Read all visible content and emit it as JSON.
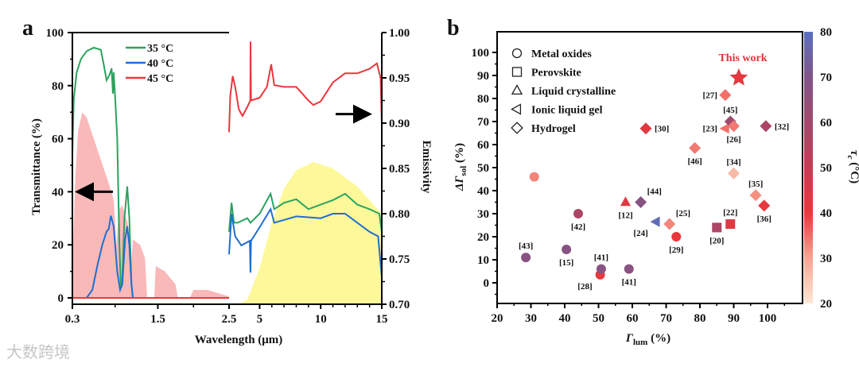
{
  "panels": {
    "a": "a",
    "b": "b"
  },
  "watermark": "大数跨境",
  "chart_data": [
    {
      "type": "line",
      "panel": "a",
      "xlabel": "Wavelength (μm)",
      "ylabel_left": "Transmittance (%)",
      "ylabel_right": "Emissivity",
      "x_ticks_left": [
        "0.3",
        "1.5",
        "2.5"
      ],
      "x_ticks_right": [
        "5",
        "10",
        "15"
      ],
      "ylim_left": [
        0,
        100
      ],
      "y_ticks_left": [
        "0",
        "20",
        "40",
        "60",
        "80",
        "100"
      ],
      "ylim_right": [
        0.7,
        1.0
      ],
      "y_ticks_right": [
        "0.70",
        "0.75",
        "0.80",
        "0.85",
        "0.90",
        "0.95",
        "1.00"
      ],
      "x_break": [
        0.3,
        2.5,
        15
      ],
      "legend": {
        "placement": "top-left",
        "entries": [
          "35 °C",
          "40 °C",
          "45 °C"
        ]
      },
      "colors": {
        "35": "#2ca25f",
        "40": "#1f6fd1",
        "45": "#e8383d",
        "solar": "#f9b9b9",
        "blackbody": "#fdf89a"
      },
      "annotations": [
        "arrow-left at 40% (transmittance axis)",
        "arrow-right at 0.91 (emissivity axis)"
      ],
      "transmittance": {
        "35": [
          [
            0.3,
            55
          ],
          [
            0.32,
            75
          ],
          [
            0.36,
            85
          ],
          [
            0.42,
            90
          ],
          [
            0.5,
            93
          ],
          [
            0.6,
            94.3
          ],
          [
            0.7,
            93.5
          ],
          [
            0.74,
            88
          ],
          [
            0.78,
            82
          ],
          [
            0.82,
            84
          ],
          [
            0.85,
            86.5
          ],
          [
            0.86,
            82
          ],
          [
            0.87,
            77
          ],
          [
            0.88,
            85
          ],
          [
            0.9,
            76
          ],
          [
            0.93,
            60
          ],
          [
            0.96,
            20
          ],
          [
            0.98,
            5
          ],
          [
            1.0,
            6
          ],
          [
            1.03,
            30
          ],
          [
            1.07,
            42
          ],
          [
            1.1,
            30
          ],
          [
            1.13,
            5
          ],
          [
            1.15,
            0
          ],
          [
            2.5,
            0
          ]
        ],
        "40": [
          [
            0.3,
            0
          ],
          [
            0.5,
            0
          ],
          [
            0.58,
            3
          ],
          [
            0.65,
            12
          ],
          [
            0.72,
            20
          ],
          [
            0.78,
            25
          ],
          [
            0.81,
            26
          ],
          [
            0.84,
            31
          ],
          [
            0.88,
            27
          ],
          [
            0.93,
            10
          ],
          [
            0.97,
            3
          ],
          [
            1.0,
            5
          ],
          [
            1.04,
            22
          ],
          [
            1.07,
            27
          ],
          [
            1.1,
            20
          ],
          [
            1.13,
            5
          ],
          [
            1.15,
            0
          ],
          [
            2.5,
            0
          ]
        ],
        "45": [
          [
            0.3,
            0
          ],
          [
            2.5,
            0
          ]
        ],
        "solar": [
          [
            0.3,
            0
          ],
          [
            0.31,
            20
          ],
          [
            0.34,
            45
          ],
          [
            0.38,
            63
          ],
          [
            0.44,
            70
          ],
          [
            0.5,
            68
          ],
          [
            0.6,
            60
          ],
          [
            0.7,
            52
          ],
          [
            0.8,
            44
          ],
          [
            0.88,
            37
          ],
          [
            0.92,
            20
          ],
          [
            0.95,
            33
          ],
          [
            1.0,
            35
          ],
          [
            1.08,
            28
          ],
          [
            1.12,
            10
          ],
          [
            1.15,
            22
          ],
          [
            1.25,
            20
          ],
          [
            1.32,
            15
          ],
          [
            1.35,
            0
          ],
          [
            1.45,
            0
          ],
          [
            1.47,
            12
          ],
          [
            1.6,
            10
          ],
          [
            1.75,
            5
          ],
          [
            1.78,
            0
          ],
          [
            1.95,
            0
          ],
          [
            2.0,
            3
          ],
          [
            2.2,
            3
          ],
          [
            2.5,
            0.5
          ]
        ]
      },
      "emissivity": {
        "35": [
          [
            2.5,
            0.78
          ],
          [
            2.7,
            0.812
          ],
          [
            2.9,
            0.79
          ],
          [
            3.2,
            0.79
          ],
          [
            4,
            0.795
          ],
          [
            4.25,
            0.79
          ],
          [
            5,
            0.8
          ],
          [
            5.9,
            0.822
          ],
          [
            6.2,
            0.805
          ],
          [
            7,
            0.812
          ],
          [
            8,
            0.816
          ],
          [
            9,
            0.805
          ],
          [
            10,
            0.81
          ],
          [
            11,
            0.815
          ],
          [
            12,
            0.822
          ],
          [
            13,
            0.81
          ],
          [
            14,
            0.805
          ],
          [
            14.8,
            0.8
          ],
          [
            15,
            0.78
          ]
        ],
        "40": [
          [
            2.5,
            0.755
          ],
          [
            2.7,
            0.8
          ],
          [
            3.0,
            0.775
          ],
          [
            3.5,
            0.765
          ],
          [
            4.2,
            0.77
          ],
          [
            4.25,
            0.735
          ],
          [
            4.3,
            0.77
          ],
          [
            5,
            0.785
          ],
          [
            5.9,
            0.805
          ],
          [
            6.2,
            0.79
          ],
          [
            8,
            0.797
          ],
          [
            10,
            0.795
          ],
          [
            11,
            0.8
          ],
          [
            12,
            0.8
          ],
          [
            13,
            0.79
          ],
          [
            14,
            0.78
          ],
          [
            14.7,
            0.775
          ],
          [
            15,
            0.73
          ]
        ],
        "45": [
          [
            2.5,
            0.89
          ],
          [
            2.6,
            0.93
          ],
          [
            2.8,
            0.952
          ],
          [
            3.0,
            0.94
          ],
          [
            3.3,
            0.915
          ],
          [
            3.6,
            0.908
          ],
          [
            4.0,
            0.918
          ],
          [
            4.24,
            0.925
          ],
          [
            4.26,
            0.99
          ],
          [
            4.3,
            0.925
          ],
          [
            5,
            0.928
          ],
          [
            5.6,
            0.94
          ],
          [
            5.95,
            0.965
          ],
          [
            6.2,
            0.942
          ],
          [
            7,
            0.94
          ],
          [
            8,
            0.94
          ],
          [
            9,
            0.925
          ],
          [
            9.4,
            0.92
          ],
          [
            10,
            0.924
          ],
          [
            11,
            0.945
          ],
          [
            12,
            0.955
          ],
          [
            13,
            0.955
          ],
          [
            14,
            0.96
          ],
          [
            14.6,
            0.966
          ],
          [
            14.9,
            0.95
          ],
          [
            15,
            0.9
          ]
        ],
        "blackbody": [
          [
            3.2,
            0.7
          ],
          [
            4,
            0.705
          ],
          [
            5,
            0.74
          ],
          [
            6,
            0.79
          ],
          [
            7,
            0.828
          ],
          [
            8,
            0.848
          ],
          [
            9.4,
            0.857
          ],
          [
            11,
            0.85
          ],
          [
            12,
            0.84
          ],
          [
            13,
            0.83
          ],
          [
            14,
            0.815
          ],
          [
            15,
            0.8
          ]
        ]
      }
    },
    {
      "type": "scatter",
      "panel": "b",
      "xlabel": "Γ",
      "xlabel_sub": "lum",
      "xlabel_unit": " (%)",
      "ylabel": "ΔΓ",
      "ylabel_sub": "sol",
      "ylabel_unit": " (%)",
      "xlim": [
        20,
        108
      ],
      "ylim": [
        -9,
        109
      ],
      "x_ticks": [
        "20",
        "30",
        "40",
        "50",
        "60",
        "70",
        "80",
        "90",
        "100"
      ],
      "y_ticks": [
        "0",
        "10",
        "20",
        "30",
        "40",
        "50",
        "60",
        "70",
        "80",
        "90",
        "100"
      ],
      "colorbar": {
        "label": "τ",
        "label_sub": "c",
        "label_unit": " (°C)",
        "range": [
          20,
          80
        ],
        "ticks": [
          "20",
          "30",
          "40",
          "50",
          "60",
          "70",
          "80"
        ],
        "stops": [
          [
            20,
            "#fde8d4"
          ],
          [
            30,
            "#f7a593"
          ],
          [
            40,
            "#e8383d"
          ],
          [
            50,
            "#c63c55"
          ],
          [
            60,
            "#a24a6d"
          ],
          [
            70,
            "#815589"
          ],
          [
            80,
            "#5a70bf"
          ]
        ]
      },
      "legend": {
        "placement": "top-left",
        "entries": [
          {
            "marker": "circle",
            "label": "Metal oxides"
          },
          {
            "marker": "square",
            "label": "Perovskite"
          },
          {
            "marker": "triangle",
            "label": "Liquid crystalline"
          },
          {
            "marker": "left-triangle",
            "label": "Ionic liquid gel"
          },
          {
            "marker": "diamond",
            "label": "Hydrogel"
          }
        ]
      },
      "highlight_label": "This work",
      "highlight_color": "#e0343b",
      "points": [
        {
          "marker": "circle",
          "x": 31,
          "y": 46,
          "tc": 33,
          "label": "",
          "pos": "below"
        },
        {
          "marker": "circle",
          "x": 44,
          "y": 30,
          "tc": 57,
          "label": "[42]",
          "pos": "below"
        },
        {
          "marker": "circle",
          "x": 28.5,
          "y": 11,
          "tc": 68,
          "label": "[43]",
          "pos": "above"
        },
        {
          "marker": "circle",
          "x": 40.5,
          "y": 14.5,
          "tc": 68,
          "label": "[15]",
          "pos": "below"
        },
        {
          "marker": "circle",
          "x": 50.5,
          "y": 3.5,
          "tc": 40,
          "label": "[28]",
          "pos": "below-left"
        },
        {
          "marker": "circle",
          "x": 50.8,
          "y": 6,
          "tc": 68,
          "label": "[41]",
          "pos": "above"
        },
        {
          "marker": "circle",
          "x": 59,
          "y": 6,
          "tc": 68,
          "label": "[41]",
          "pos": "below"
        },
        {
          "marker": "circle",
          "x": 73,
          "y": 20,
          "tc": 40,
          "label": "[29]",
          "pos": "below"
        },
        {
          "marker": "square",
          "x": 85,
          "y": 24,
          "tc": 57,
          "label": "[20]",
          "pos": "below"
        },
        {
          "marker": "square",
          "x": 89,
          "y": 25.5,
          "tc": 42,
          "label": "[22]",
          "pos": "above"
        },
        {
          "marker": "triangle",
          "x": 58,
          "y": 35,
          "tc": 42,
          "label": "[12]",
          "pos": "below"
        },
        {
          "marker": "left-triangle",
          "x": 67,
          "y": 26.5,
          "tc": 78,
          "label": "[24]",
          "pos": "below-left"
        },
        {
          "marker": "left-triangle",
          "x": 87.5,
          "y": 67,
          "tc": 35,
          "label": "[23]",
          "pos": "left"
        },
        {
          "marker": "diamond",
          "x": 62.5,
          "y": 35,
          "tc": 68,
          "label": "[44]",
          "pos": "above-right"
        },
        {
          "marker": "diamond",
          "x": 71,
          "y": 25.5,
          "tc": 33,
          "label": "[25]",
          "pos": "above-right"
        },
        {
          "marker": "diamond",
          "x": 64,
          "y": 67,
          "tc": 42,
          "label": "[30]",
          "pos": "right"
        },
        {
          "marker": "diamond",
          "x": 78.5,
          "y": 58.5,
          "tc": 34,
          "label": "[46]",
          "pos": "below"
        },
        {
          "marker": "diamond",
          "x": 87.5,
          "y": 81.5,
          "tc": 35,
          "label": "[27]",
          "pos": "left"
        },
        {
          "marker": "diamond",
          "x": 89,
          "y": 70,
          "tc": 60,
          "label": "[45]",
          "pos": "above"
        },
        {
          "marker": "diamond",
          "x": 90,
          "y": 68,
          "tc": 34,
          "label": "[26]",
          "pos": "below"
        },
        {
          "marker": "diamond",
          "x": 99.5,
          "y": 68,
          "tc": 57,
          "label": "[32]",
          "pos": "right"
        },
        {
          "marker": "diamond",
          "x": 90,
          "y": 47.5,
          "tc": 27,
          "label": "[34]",
          "pos": "above"
        },
        {
          "marker": "diamond",
          "x": 96.5,
          "y": 38,
          "tc": 32,
          "label": "[35]",
          "pos": "above"
        },
        {
          "marker": "diamond",
          "x": 99,
          "y": 33.5,
          "tc": 40,
          "label": "[36]",
          "pos": "below"
        },
        {
          "marker": "star",
          "x": 91.5,
          "y": 89,
          "tc": 41,
          "label": "",
          "pos": "none"
        }
      ]
    }
  ]
}
